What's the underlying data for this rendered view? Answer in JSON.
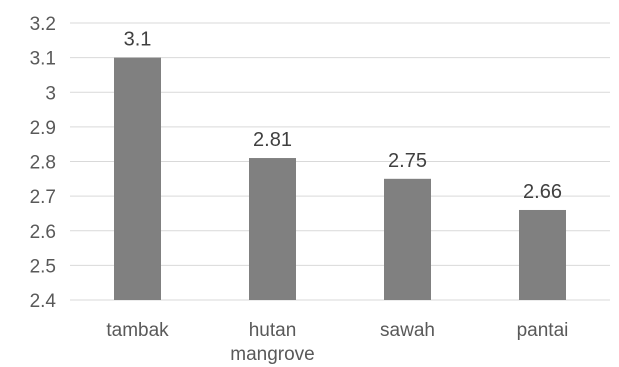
{
  "chart_data": {
    "type": "bar",
    "categories": [
      "tambak",
      "hutan mangrove",
      "sawah",
      "pantai"
    ],
    "values": [
      3.1,
      2.81,
      2.75,
      2.66
    ],
    "data_labels": [
      "3.1",
      "2.81",
      "2.75",
      "2.66"
    ],
    "ylim": [
      2.4,
      3.2
    ],
    "yticks": [
      2.4,
      2.5,
      2.6,
      2.7,
      2.8,
      2.9,
      3,
      3.1,
      3.2
    ],
    "ytick_labels": [
      "2.4",
      "2.5",
      "2.6",
      "2.7",
      "2.8",
      "2.9",
      "3",
      "3.1",
      "3.2"
    ],
    "grid": true,
    "bar_color": "#808080",
    "grid_color": "#d9d9d9"
  }
}
